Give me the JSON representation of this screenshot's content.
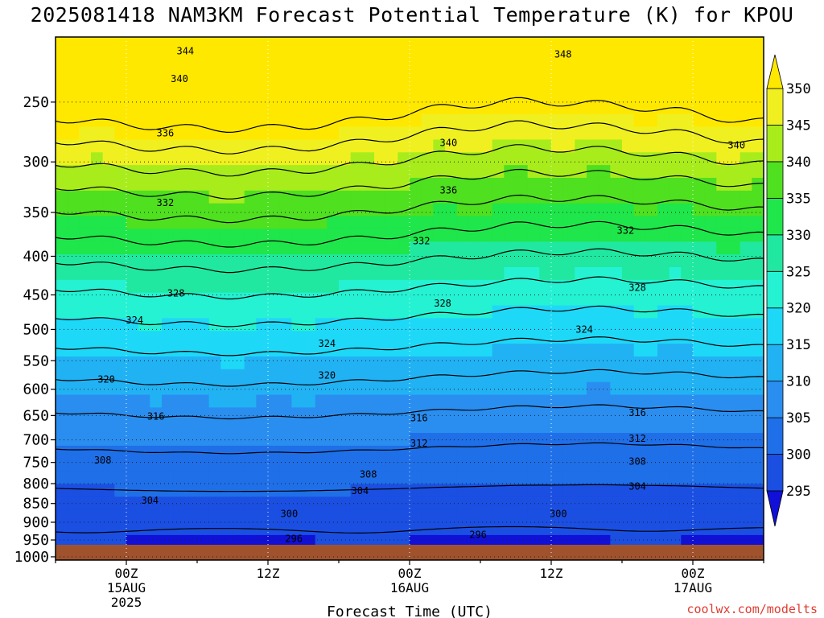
{
  "title": "2025081418 NAM3KM Forecast Potential Temperature (K) for KPOU",
  "credit": "coolwx.com/modelts",
  "chart_data": {
    "type": "contourf",
    "xlabel": "Forecast Time (UTC)",
    "x_range_hours": [
      -6,
      54
    ],
    "y_range_hpa": [
      1010,
      205
    ],
    "y_scale": "log (pressure, inverted)",
    "grid": "dotted",
    "y_ticks": [
      250,
      300,
      350,
      400,
      450,
      500,
      550,
      600,
      650,
      700,
      750,
      800,
      850,
      900,
      950,
      1000
    ],
    "x_ticks": [
      {
        "hour": 0,
        "lines": [
          "00Z",
          "15AUG",
          "2025"
        ]
      },
      {
        "hour": 12,
        "lines": [
          "12Z"
        ]
      },
      {
        "hour": 24,
        "lines": [
          "00Z",
          "16AUG"
        ]
      },
      {
        "hour": 36,
        "lines": [
          "12Z"
        ]
      },
      {
        "hour": 48,
        "lines": [
          "00Z",
          "17AUG"
        ]
      }
    ],
    "colorbar": {
      "levels": [
        295,
        300,
        305,
        310,
        315,
        320,
        325,
        330,
        335,
        340,
        345,
        350
      ],
      "labels": [
        295,
        300,
        305,
        310,
        315,
        320,
        325,
        330,
        335,
        340,
        345,
        350
      ],
      "colors": [
        "#1010d8",
        "#1a4fe2",
        "#1f6fe8",
        "#2a8ef0",
        "#21b2f4",
        "#1ed8f8",
        "#24f2d2",
        "#20e8a0",
        "#1fe64a",
        "#4fe020",
        "#a8ec1c",
        "#f0f020",
        "#ffe800"
      ]
    },
    "contour_labels": [
      {
        "value": "344",
        "hour": 5,
        "p": 214
      },
      {
        "value": "348",
        "hour": 37,
        "p": 216
      },
      {
        "value": "340",
        "hour": 4.5,
        "p": 233
      },
      {
        "value": "336",
        "hour": 3.3,
        "p": 275
      },
      {
        "value": "340",
        "hour": 27.3,
        "p": 283
      },
      {
        "value": "340",
        "hour": 51.7,
        "p": 285
      },
      {
        "value": "336",
        "hour": 27.3,
        "p": 327
      },
      {
        "value": "332",
        "hour": 3.3,
        "p": 340
      },
      {
        "value": "332",
        "hour": 42.3,
        "p": 370
      },
      {
        "value": "332",
        "hour": 25,
        "p": 382
      },
      {
        "value": "328",
        "hour": 4.2,
        "p": 448
      },
      {
        "value": "328",
        "hour": 43.3,
        "p": 440
      },
      {
        "value": "328",
        "hour": 26.8,
        "p": 462
      },
      {
        "value": "324",
        "hour": 0.7,
        "p": 486
      },
      {
        "value": "324",
        "hour": 38.8,
        "p": 500
      },
      {
        "value": "324",
        "hour": 17,
        "p": 522
      },
      {
        "value": "320",
        "hour": -1.7,
        "p": 582
      },
      {
        "value": "320",
        "hour": 17,
        "p": 575
      },
      {
        "value": "316",
        "hour": 2.5,
        "p": 652
      },
      {
        "value": "316",
        "hour": 43.3,
        "p": 645
      },
      {
        "value": "316",
        "hour": 24.8,
        "p": 655
      },
      {
        "value": "312",
        "hour": 43.3,
        "p": 697
      },
      {
        "value": "312",
        "hour": 24.8,
        "p": 708
      },
      {
        "value": "308",
        "hour": -2,
        "p": 745
      },
      {
        "value": "308",
        "hour": 43.3,
        "p": 748
      },
      {
        "value": "308",
        "hour": 20.5,
        "p": 778
      },
      {
        "value": "304",
        "hour": 43.3,
        "p": 807
      },
      {
        "value": "304",
        "hour": 19.8,
        "p": 818
      },
      {
        "value": "304",
        "hour": 2,
        "p": 842
      },
      {
        "value": "300",
        "hour": 13.8,
        "p": 877
      },
      {
        "value": "300",
        "hour": 36.6,
        "p": 877
      },
      {
        "value": "296",
        "hour": 14.2,
        "p": 946
      },
      {
        "value": "296",
        "hour": 29.8,
        "p": 935
      }
    ]
  }
}
